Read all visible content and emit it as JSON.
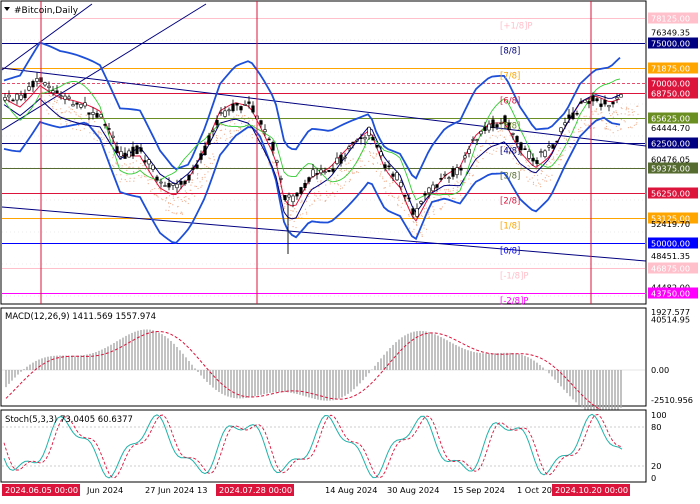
{
  "symbol_title": "#Bitcoin,Daily",
  "main_price_labels": [
    {
      "text": "78125.00",
      "price": 78125,
      "bg": "#ffc0cb",
      "fg": "#ffffff"
    },
    {
      "text": "76349.35",
      "price": 76349.35,
      "bg": "",
      "fg": "#000000"
    },
    {
      "text": "75000.00",
      "price": 75000,
      "bg": "#000080",
      "fg": "#ffffff"
    },
    {
      "text": "71875.00",
      "price": 71875,
      "bg": "#ffa500",
      "fg": "#ffffff"
    },
    {
      "text": "70000.00",
      "price": 70000,
      "bg": "#dc143c",
      "fg": "#ffffff"
    },
    {
      "text": "68750.00",
      "price": 68750,
      "bg": "#dc143c",
      "fg": "#ffffff"
    },
    {
      "text": "65625.00",
      "price": 65625,
      "bg": "#6b8e23",
      "fg": "#ffffff"
    },
    {
      "text": "64444.70",
      "price": 64444.7,
      "bg": "",
      "fg": "#000000"
    },
    {
      "text": "62500.00",
      "price": 62500,
      "bg": "#000080",
      "fg": "#ffffff"
    },
    {
      "text": "60476.05",
      "price": 60476.05,
      "bg": "",
      "fg": "#000000"
    },
    {
      "text": "59375.00",
      "price": 59375,
      "bg": "#556b2f",
      "fg": "#ffffff"
    },
    {
      "text": "56250.00",
      "price": 56250,
      "bg": "#dc143c",
      "fg": "#ffffff"
    },
    {
      "text": "53125.00",
      "price": 53125,
      "bg": "#ffa500",
      "fg": "#ffffff"
    },
    {
      "text": "52419.70",
      "price": 52419.7,
      "bg": "",
      "fg": "#000000"
    },
    {
      "text": "50000.00",
      "price": 50000,
      "bg": "#0000ff",
      "fg": "#ffffff"
    },
    {
      "text": "48451.35",
      "price": 48451.35,
      "bg": "",
      "fg": "#000000"
    },
    {
      "text": "46875.00",
      "price": 46875,
      "bg": "#ffc0cb",
      "fg": "#ffffff"
    },
    {
      "text": "44482.00",
      "price": 44482,
      "bg": "",
      "fg": "#000000"
    },
    {
      "text": "43750.00",
      "price": 43750,
      "bg": "#ff00ff",
      "fg": "#ffffff"
    },
    {
      "text": "40514.95",
      "price": 40514.95,
      "bg": "",
      "fg": "#000000"
    }
  ],
  "murrey_levels": [
    {
      "label": "[+1/8]P",
      "price": 78125,
      "color": "#ffc0cb"
    },
    {
      "label": "[8/8]",
      "price": 75000,
      "color": "#000080"
    },
    {
      "label": "[7/8]",
      "price": 71875,
      "color": "#ffa500"
    },
    {
      "label": "[6/8]",
      "price": 68750,
      "color": "#dc143c"
    },
    {
      "label": "[5/8]",
      "price": 65625,
      "color": "#6b8e23"
    },
    {
      "label": "[4/8]",
      "price": 62500,
      "color": "#000080"
    },
    {
      "label": "[3/8]",
      "price": 59375,
      "color": "#556b2f"
    },
    {
      "label": "[2/8]",
      "price": 56250,
      "color": "#dc143c"
    },
    {
      "label": "[1/8]",
      "price": 53125,
      "color": "#ffa500"
    },
    {
      "label": "[0/8]",
      "price": 50000,
      "color": "#0000ff"
    },
    {
      "label": "[-1/8]P",
      "price": 46875,
      "color": "#ffc0cb"
    },
    {
      "label": "[-2/8]P",
      "price": 43750,
      "color": "#ff00ff"
    }
  ],
  "macd": {
    "title": "MACD(12,26,9) 1411.569 1557.974",
    "scale": [
      "1927.577",
      "0.00",
      "-2510.956"
    ],
    "hist_color": "#a9a9a9",
    "signal_color": "#dc143c"
  },
  "stoch": {
    "title": "Stoch(5,3,3) 73.0405 60.6377",
    "scale": [
      "100",
      "80",
      "20",
      "0"
    ],
    "main_color": "#20b2aa",
    "signal_color": "#dc143c"
  },
  "time_labels": [
    {
      "text": "2024.06.05 00:00",
      "highlight": true
    },
    {
      "text": "Jun 2024",
      "highlight": false
    },
    {
      "text": "27 Jun 2024",
      "highlight": false
    },
    {
      "text": "13",
      "highlight": false
    },
    {
      "text": "2024.07.28 00:00",
      "highlight": true
    },
    {
      "text": "14 Aug 2024",
      "highlight": false
    },
    {
      "text": "30 Aug 2024",
      "highlight": false
    },
    {
      "text": "15 Sep 2024",
      "highlight": false
    },
    {
      "text": "1 Oct 20",
      "highlight": false
    },
    {
      "text": "2024.10.20 00:00",
      "highlight": true
    }
  ],
  "colors": {
    "highlight_bg": "#dc143c",
    "band": "#1e4fd8",
    "trend": "#000080",
    "ma_fast": "#dc143c",
    "ichimoku": "#32cd32",
    "candle": "#000000"
  }
}
